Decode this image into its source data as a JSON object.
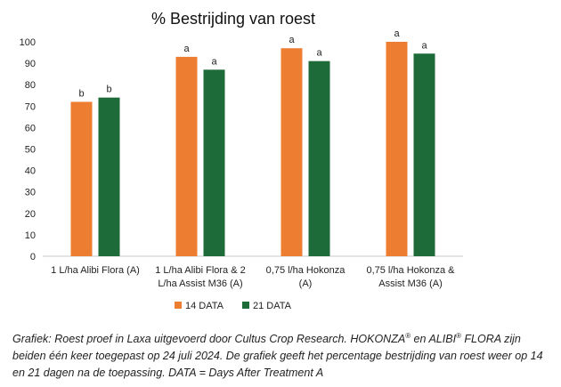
{
  "chart_data": {
    "type": "bar",
    "title": "% Bestrijding van roest",
    "xlabel": "",
    "ylabel": "",
    "ylim": [
      0,
      100
    ],
    "yticks": [
      0,
      10,
      20,
      30,
      40,
      50,
      60,
      70,
      80,
      90,
      100
    ],
    "grid": false,
    "legend": "bottom",
    "categories": [
      [
        "1 L/ha Alibi Flora (A)"
      ],
      [
        "1 L/ha Alibi Flora & 2",
        "L/ha Assist M36 (A)"
      ],
      [
        "0,75 l/ha Hokonza",
        "(A)"
      ],
      [
        "0,75 l/ha Hokonza &",
        "Assist M36 (A)"
      ]
    ],
    "series": [
      {
        "name": "14 DATA",
        "color": "#ED7D31",
        "values": [
          72,
          93,
          97,
          100
        ],
        "labels": [
          "b",
          "a",
          "a",
          "a"
        ]
      },
      {
        "name": "21 DATA",
        "color": "#1E6B3A",
        "values": [
          74,
          87,
          91,
          94.5
        ],
        "labels": [
          "b",
          "a",
          "a",
          "a"
        ]
      }
    ]
  },
  "caption": {
    "part1": "Grafiek: Roest proef in Laxa uitgevoerd door Cultus Crop Research. ",
    "brand1": "HOKONZA",
    "reg1": "®",
    "mid": " en ",
    "brand2": "ALIBI",
    "reg2": "®",
    "line2": " FLORA zijn beiden één keer toegepast op 24 juli 2024. De grafiek geeft het percentage bestrijding van roest weer op 14 en 21 dagen na de toepassing. DATA = Days After Treatment A"
  }
}
